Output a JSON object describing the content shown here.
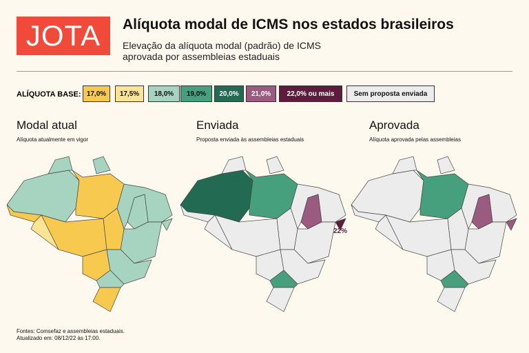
{
  "header": {
    "logo": "JOTA",
    "title": "Alíquota modal de ICMS nos estados brasileiros",
    "subtitle": [
      "Elevação da alíquota modal (padrão) de ICMS",
      "aprovada por assembleias estaduais"
    ]
  },
  "legend": {
    "label": "ALÍQUOTA BASE:",
    "items": [
      {
        "label": "17,0%",
        "color": "#f8c94f"
      },
      {
        "label": "17,5%",
        "color": "#fbe594"
      },
      {
        "label": "18,0%",
        "color": "#a6d4c0"
      },
      {
        "label": "19,0%",
        "color": "#47a07d"
      },
      {
        "label": "20,0%",
        "color": "#226b52"
      },
      {
        "label": "21,0%",
        "color": "#9b5a80"
      },
      {
        "label": "22,0% ou mais",
        "color": "#5d1b3d"
      },
      {
        "label": "Sem proposta enviada",
        "color": "#ececec"
      }
    ]
  },
  "maps": [
    {
      "title": "Modal atual",
      "subtitle": "Alíquota atualmente em vigor"
    },
    {
      "title": "Enviada",
      "subtitle": "Proposta enviada às assembleias estaduais",
      "annotation": "22%"
    },
    {
      "title": "Aprovada",
      "subtitle": "Alíquota aprovada pelas assembleias"
    }
  ],
  "footer": {
    "source": "Fontes: Comsefaz e assembleias estaduais.",
    "updated": "Atualizado em: 08/12/22 às 17:00."
  }
}
